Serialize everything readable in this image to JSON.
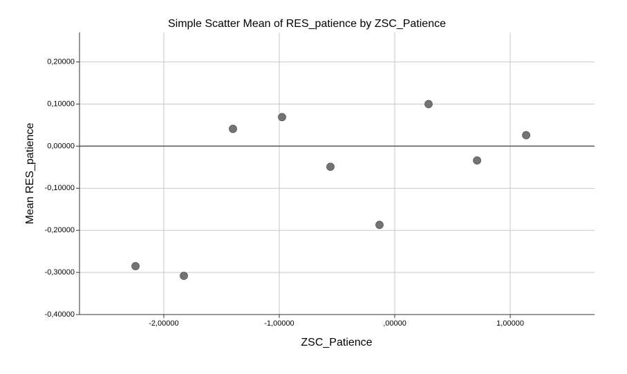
{
  "chart_data": {
    "type": "scatter",
    "title": "Simple Scatter Mean of RES_patience by ZSC_Patience",
    "x_label": "ZSC_Patience",
    "y_label": "Mean RES_patience",
    "x": [
      -2.245,
      -1.826,
      -1.401,
      -0.976,
      -0.557,
      -0.132,
      0.293,
      0.713,
      1.138
    ],
    "values": [
      -0.285,
      -0.308,
      0.041,
      0.069,
      -0.049,
      -0.187,
      0.1,
      -0.034,
      0.026
    ],
    "color": "#737373",
    "xlim": [
      -2.73,
      1.73
    ],
    "ylim": [
      -0.4,
      0.27
    ],
    "xticks": [
      {
        "value": -2,
        "label": "-2,00000"
      },
      {
        "value": -1,
        "label": "-1,00000"
      },
      {
        "value": 0,
        "label": ",00000"
      },
      {
        "value": 1,
        "label": "1,00000"
      }
    ],
    "yticks": [
      {
        "value": 0.2,
        "label": "0,20000"
      },
      {
        "value": 0.1,
        "label": "0,10000"
      },
      {
        "value": 0,
        "label": "0,00000"
      },
      {
        "value": -0.1,
        "label": "-0,10000"
      },
      {
        "value": -0.2,
        "label": "-0,20000"
      },
      {
        "value": -0.3,
        "label": "-0,30000"
      },
      {
        "value": -0.4,
        "label": "-0,40000"
      }
    ],
    "grid": true,
    "zero_line": true
  }
}
